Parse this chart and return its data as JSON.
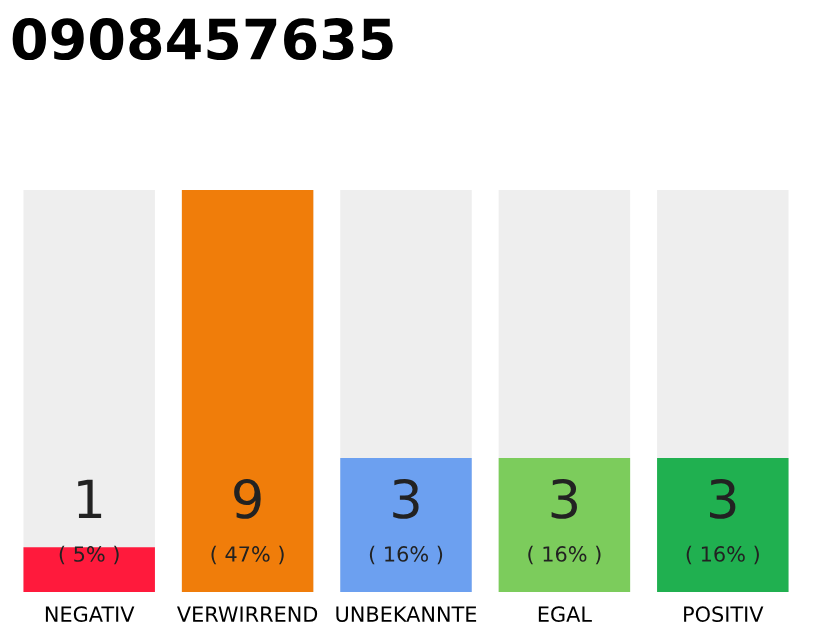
{
  "chart_data": {
    "type": "bar",
    "title": "0908457635",
    "categories": [
      "NEGATIV",
      "VERWIRREND",
      "UNBEKANNTE",
      "EGAL",
      "POSITIV"
    ],
    "values": [
      1,
      9,
      3,
      3,
      3
    ],
    "colors": [
      "#ff1a3c",
      "#f07d0a",
      "#6ca0f0",
      "#7ccc5c",
      "#20b050"
    ],
    "ylim": [
      0,
      9
    ],
    "data_labels": true,
    "grid": false,
    "legend": false,
    "tick_labels": "x",
    "annotations": [
      "( 5% )",
      "( 47% )",
      "( 16% )",
      "( 16% )",
      "( 16% )"
    ]
  }
}
